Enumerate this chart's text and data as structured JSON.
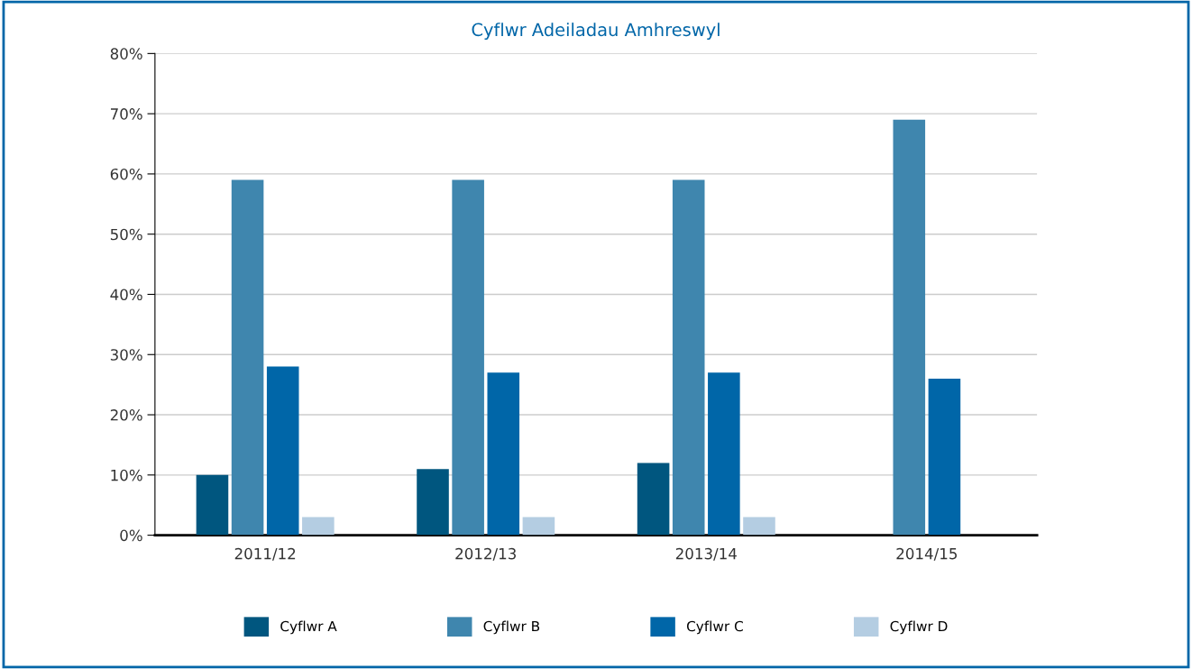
{
  "chart_data": {
    "type": "bar",
    "title": "Cyflwr Adeiladau Amhreswyl",
    "categories": [
      "2011/12",
      "2012/13",
      "2013/14",
      "2014/15"
    ],
    "series": [
      {
        "name": "Cyflwr A",
        "color": "#00567f",
        "values": [
          10,
          11,
          12,
          null
        ]
      },
      {
        "name": "Cyflwr B",
        "color": "#3f86ae",
        "values": [
          59,
          59,
          59,
          69
        ]
      },
      {
        "name": "Cyflwr C",
        "color": "#0066a8",
        "values": [
          28,
          27,
          27,
          26
        ]
      },
      {
        "name": "Cyflwr D",
        "color": "#b4cde2",
        "values": [
          3,
          3,
          3,
          null
        ]
      }
    ],
    "ylim": [
      0,
      80
    ],
    "yticks": [
      {
        "value": 0,
        "label": "0%"
      },
      {
        "value": 10,
        "label": "10%"
      },
      {
        "value": 20,
        "label": "20%"
      },
      {
        "value": 30,
        "label": "30%"
      },
      {
        "value": 40,
        "label": "40%"
      },
      {
        "value": 50,
        "label": "50%"
      },
      {
        "value": 60,
        "label": "60%"
      },
      {
        "value": 70,
        "label": "70%"
      },
      {
        "value": 80,
        "label": "80%"
      }
    ],
    "grid": "y",
    "legend": "bottom"
  }
}
